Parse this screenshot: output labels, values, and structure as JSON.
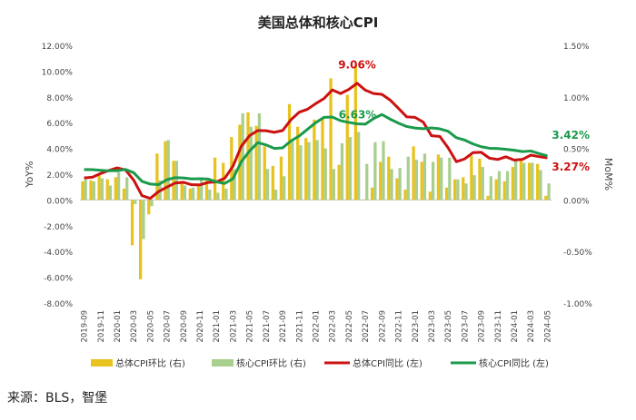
{
  "chart_data": {
    "type": "bar+line",
    "title": "美国总体和核心CPI",
    "ylabel_left": "YoY%",
    "ylabel_right": "MoM%",
    "ylim_left": [
      -8,
      12
    ],
    "ylim_right": [
      -1,
      1.5
    ],
    "yticks_left": [
      "12.00%",
      "10.00%",
      "8.00%",
      "6.00%",
      "4.00%",
      "2.00%",
      "0.00%",
      "-2.00%",
      "-4.00%",
      "-6.00%",
      "-8.00%"
    ],
    "yticks_right": [
      "1.50%",
      "1.00%",
      "0.50%",
      "0.00%",
      "-0.50%",
      "-1.00%"
    ],
    "xtick_labels": [
      "2019-09",
      "2019-11",
      "2020-01",
      "2020-03",
      "2020-05",
      "2020-07",
      "2020-09",
      "2020-11",
      "2021-01",
      "2021-03",
      "2021-05",
      "2021-07",
      "2021-09",
      "2021-11",
      "2022-01",
      "2022-03",
      "2022-05",
      "2022-07",
      "2022-09",
      "2022-11",
      "2023-01",
      "2023-03",
      "2023-05",
      "2023-07",
      "2023-09",
      "2023-11",
      "2024-01",
      "2024-03",
      "2024-05"
    ],
    "categories": [
      "2019-09",
      "2019-10",
      "2019-11",
      "2019-12",
      "2020-01",
      "2020-02",
      "2020-03",
      "2020-04",
      "2020-05",
      "2020-06",
      "2020-07",
      "2020-08",
      "2020-09",
      "2020-10",
      "2020-11",
      "2020-12",
      "2021-01",
      "2021-02",
      "2021-03",
      "2021-04",
      "2021-05",
      "2021-06",
      "2021-07",
      "2021-08",
      "2021-09",
      "2021-10",
      "2021-11",
      "2021-12",
      "2022-01",
      "2022-02",
      "2022-03",
      "2022-04",
      "2022-05",
      "2022-06",
      "2022-07",
      "2022-08",
      "2022-09",
      "2022-10",
      "2022-11",
      "2022-12",
      "2023-01",
      "2023-02",
      "2023-03",
      "2023-04",
      "2023-05",
      "2023-06",
      "2023-07",
      "2023-08",
      "2023-09",
      "2023-10",
      "2023-11",
      "2023-12",
      "2024-01",
      "2024-02",
      "2024-03",
      "2024-04",
      "2024-05"
    ],
    "series": [
      {
        "name": "总体CPI环比 (右)",
        "type": "bar",
        "axis": "right",
        "color": "#e8c21e",
        "values": [
          0.18,
          0.19,
          0.25,
          0.2,
          0.22,
          0.11,
          -0.44,
          -0.77,
          -0.14,
          0.45,
          0.57,
          0.38,
          0.17,
          0.11,
          0.15,
          0.19,
          0.41,
          0.36,
          0.61,
          0.73,
          0.85,
          0.72,
          0.52,
          0.33,
          0.42,
          0.93,
          0.71,
          0.6,
          0.78,
          0.79,
          1.18,
          0.34,
          1.02,
          1.3,
          0.0,
          0.12,
          0.37,
          0.42,
          0.21,
          0.1,
          0.52,
          0.37,
          0.08,
          0.44,
          0.12,
          0.2,
          0.22,
          0.43,
          0.4,
          0.04,
          0.2,
          0.18,
          0.32,
          0.4,
          0.36,
          0.35,
          0.04
        ]
      },
      {
        "name": "核心CPI环比 (右)",
        "type": "bar",
        "axis": "right",
        "color": "#a9cf8f",
        "values": [
          0.2,
          0.18,
          0.21,
          0.14,
          0.27,
          0.22,
          -0.04,
          -0.38,
          -0.06,
          0.19,
          0.58,
          0.38,
          0.14,
          0.12,
          0.2,
          0.1,
          0.07,
          0.11,
          0.3,
          0.84,
          0.71,
          0.84,
          0.3,
          0.1,
          0.23,
          0.58,
          0.53,
          0.56,
          0.58,
          0.5,
          0.3,
          0.55,
          0.61,
          0.66,
          0.35,
          0.56,
          0.57,
          0.3,
          0.31,
          0.42,
          0.39,
          0.45,
          0.37,
          0.41,
          0.41,
          0.2,
          0.16,
          0.24,
          0.32,
          0.23,
          0.28,
          0.28,
          0.39,
          0.36,
          0.36,
          0.29,
          0.16
        ]
      },
      {
        "name": "总体CPI同比 (左)",
        "type": "line",
        "axis": "left",
        "color": "#cc1111",
        "values": [
          1.71,
          1.76,
          2.05,
          2.29,
          2.49,
          2.33,
          1.54,
          0.33,
          0.12,
          0.65,
          0.99,
          1.31,
          1.37,
          1.18,
          1.17,
          1.36,
          1.4,
          1.68,
          2.62,
          4.16,
          4.99,
          5.39,
          5.37,
          5.25,
          5.39,
          6.22,
          6.81,
          7.04,
          7.48,
          7.87,
          8.54,
          8.26,
          8.58,
          9.06,
          8.52,
          8.26,
          8.2,
          7.75,
          7.11,
          6.45,
          6.41,
          6.04,
          4.98,
          4.93,
          4.05,
          2.97,
          3.18,
          3.67,
          3.7,
          3.24,
          3.14,
          3.35,
          3.09,
          3.15,
          3.48,
          3.36,
          3.27
        ]
      },
      {
        "name": "核心CPI同比 (左)",
        "type": "line",
        "axis": "left",
        "color": "#1a9a4b",
        "values": [
          2.36,
          2.35,
          2.3,
          2.26,
          2.27,
          2.37,
          2.11,
          1.44,
          1.23,
          1.19,
          1.57,
          1.73,
          1.71,
          1.63,
          1.65,
          1.62,
          1.4,
          1.28,
          1.65,
          2.96,
          3.8,
          4.45,
          4.27,
          4.0,
          4.04,
          4.58,
          4.96,
          5.48,
          6.0,
          6.41,
          6.44,
          6.15,
          6.02,
          5.91,
          5.88,
          6.32,
          6.63,
          6.27,
          5.96,
          5.7,
          5.58,
          5.53,
          5.59,
          5.52,
          5.33,
          4.83,
          4.65,
          4.35,
          4.13,
          4.01,
          3.99,
          3.93,
          3.86,
          3.75,
          3.8,
          3.6,
          3.42
        ]
      }
    ],
    "annotations": [
      {
        "text": "9.06%",
        "category": "2022-06",
        "value": 9.06,
        "color": "#cc1111"
      },
      {
        "text": "6.63%",
        "category": "2022-09",
        "value": 6.63,
        "color": "#1a9a4b"
      },
      {
        "text": "3.42%",
        "category": "2024-05",
        "value": 3.42,
        "color": "#1a9a4b"
      },
      {
        "text": "3.27%",
        "category": "2024-05",
        "value": 3.27,
        "color": "#cc1111"
      }
    ],
    "legend_position": "bottom",
    "grid": false
  },
  "source": "来源：BLS，智堡"
}
